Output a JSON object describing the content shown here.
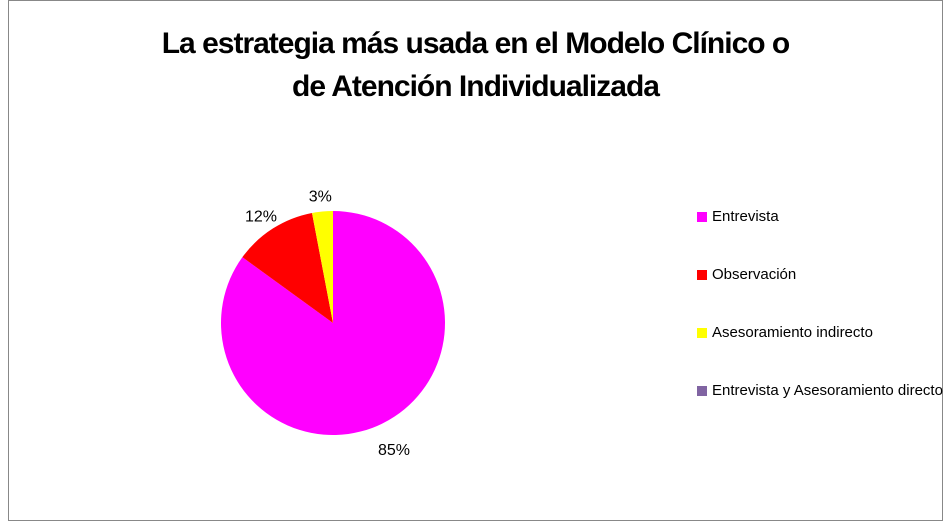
{
  "chart_data": {
    "type": "pie",
    "title": "La estrategia más usada en el Modelo Clínico o\nde Atención Individualizada",
    "categories": [
      "Entrevista",
      "Observación",
      "Asesoramiento indirecto",
      "Entrevista y Asesoramiento directo"
    ],
    "values": [
      85,
      12,
      3,
      0
    ],
    "value_labels": [
      "85%",
      "12%",
      "3%",
      null
    ],
    "colors": [
      "#ff00ff",
      "#ff0000",
      "#ffff00",
      "#8064a2"
    ],
    "legend": "right"
  }
}
